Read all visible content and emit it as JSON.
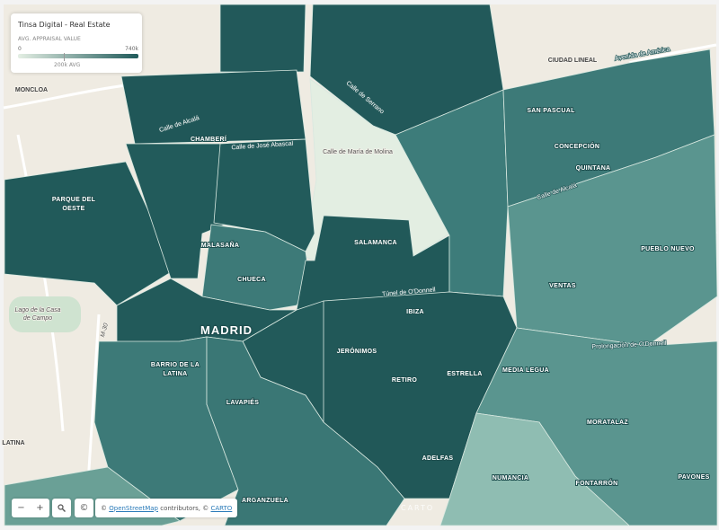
{
  "legend": {
    "title": "Tinsa Digital - Real Estate",
    "subtitle": "AVG. APPRAISAL VALUE",
    "min": "0",
    "max": "740k",
    "average": "200k AVG"
  },
  "places": [
    "CIUDAD LINEAL",
    "MONCLOA",
    "CHAMBERÍ",
    [
      "PARQUE DEL",
      "OESTE"
    ],
    "MALASAÑA",
    "CHUECA",
    "SALAMANCA",
    "MADRID",
    [
      "BARRIO DE LA",
      "LATINA"
    ],
    "LAVAPIÉS",
    "JERÓNIMOS",
    "IBIZA",
    "RETIRO",
    "ESTRELLA",
    "ADELFAS",
    "ARGANZUELA",
    "NUMANCIA",
    "FONTARRÓN",
    "PAVONES",
    "MORATALAZ",
    "MEDIA LEGUA",
    "VENTAS",
    "PUEBLO NUEVO",
    "SAN PASCUAL",
    "CONCEPCIÓN",
    "QUINTANA",
    "LATINA"
  ],
  "streets": [
    "Calle de María de Molina",
    "Calle de José Abascal",
    "Túnel de O'Donnell",
    "Calle de Alcalá",
    "Avenida de América",
    "Prolongación de O'Donnell",
    [
      "Lago de la Casa",
      "de Campo"
    ],
    "M-30",
    "Calle de Alcalá",
    "Calle de Serrano"
  ],
  "controls": {
    "zoom_out": "−",
    "zoom_in": "+",
    "info": "©"
  },
  "attribution": {
    "prefix": "©",
    "osm": "OpenStreetMap",
    "middle": "contributors, ©",
    "carto": "CARTO"
  },
  "watermark": "CARTO"
}
